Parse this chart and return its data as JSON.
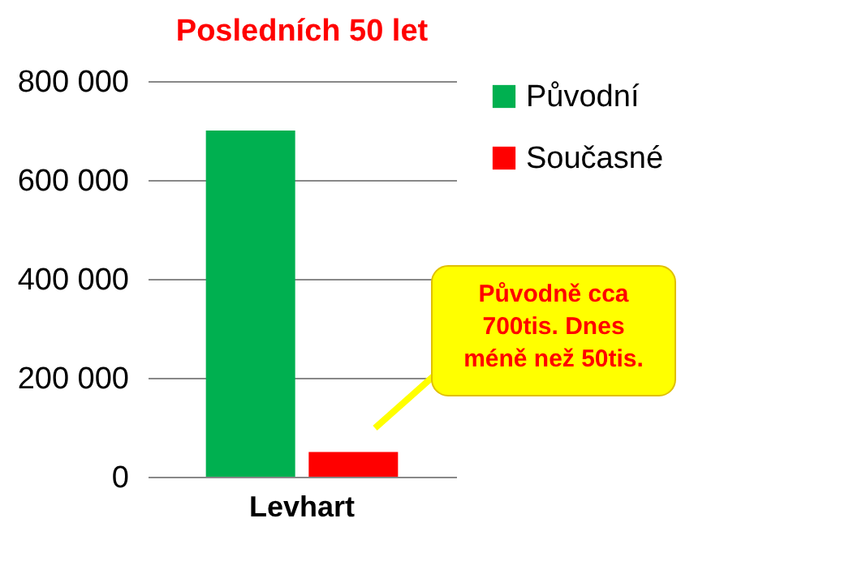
{
  "chart_data": {
    "type": "bar",
    "title": "Posledních 50 let",
    "categories": [
      "Levhart"
    ],
    "series": [
      {
        "name": "Původní",
        "color": "#00b050",
        "values": [
          700000
        ]
      },
      {
        "name": "Současné",
        "color": "#ff0000",
        "values": [
          50000
        ]
      }
    ],
    "ylim": [
      0,
      800000
    ],
    "yticks": [
      0,
      {
        "value": 200000,
        "label": "200 000"
      },
      {
        "value": 400000,
        "label": "400 000"
      },
      {
        "value": 600000,
        "label": "600 000"
      },
      {
        "value": 800000,
        "label": "800 000"
      }
    ],
    "grid": "y",
    "legend": "right",
    "annotations": [
      "Původně cca\n700tis. Dnes\nméně než 50tis."
    ]
  }
}
